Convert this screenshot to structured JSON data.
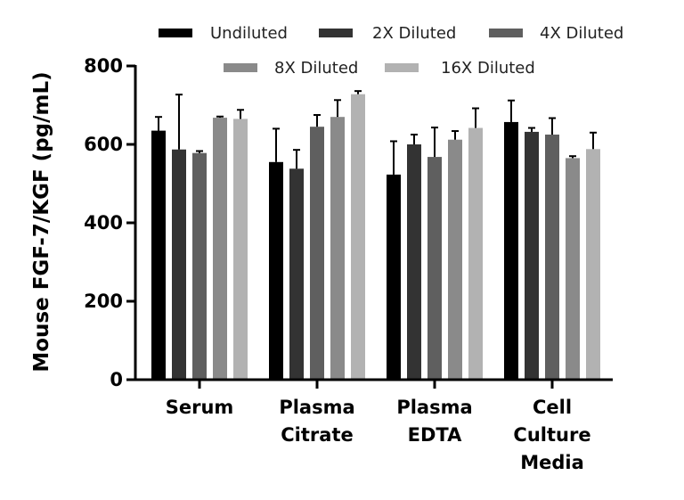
{
  "chart_data": {
    "type": "bar",
    "title": "",
    "xlabel": "",
    "ylabel": "Mouse FGF-7/KGF (pg/mL)",
    "ylim": [
      0,
      800
    ],
    "yticks": [
      0,
      200,
      400,
      600,
      800
    ],
    "grid": false,
    "legend_position": "top",
    "categories": [
      {
        "lines": [
          "Serum"
        ]
      },
      {
        "lines": [
          "Plasma",
          "Citrate"
        ]
      },
      {
        "lines": [
          "Plasma",
          "EDTA"
        ]
      },
      {
        "lines": [
          "Cell",
          "Culture",
          "Media"
        ]
      }
    ],
    "series": [
      {
        "name": "Undiluted",
        "color": "#000000",
        "values": [
          635,
          555,
          523,
          657
        ],
        "errors": [
          35,
          85,
          85,
          55
        ]
      },
      {
        "name": "2X Diluted",
        "color": "#333333",
        "values": [
          587,
          538,
          600,
          632
        ],
        "errors": [
          140,
          48,
          25,
          10
        ]
      },
      {
        "name": "4X Diluted",
        "color": "#5f5f5f",
        "values": [
          578,
          645,
          568,
          625
        ],
        "errors": [
          5,
          30,
          75,
          42
        ]
      },
      {
        "name": "8X Diluted",
        "color": "#8a8a8a",
        "values": [
          668,
          670,
          612,
          565
        ],
        "errors": [
          3,
          43,
          22,
          5
        ]
      },
      {
        "name": "16X Diluted",
        "color": "#b2b2b2",
        "values": [
          665,
          728,
          642,
          588
        ],
        "errors": [
          23,
          8,
          50,
          42
        ]
      }
    ]
  }
}
